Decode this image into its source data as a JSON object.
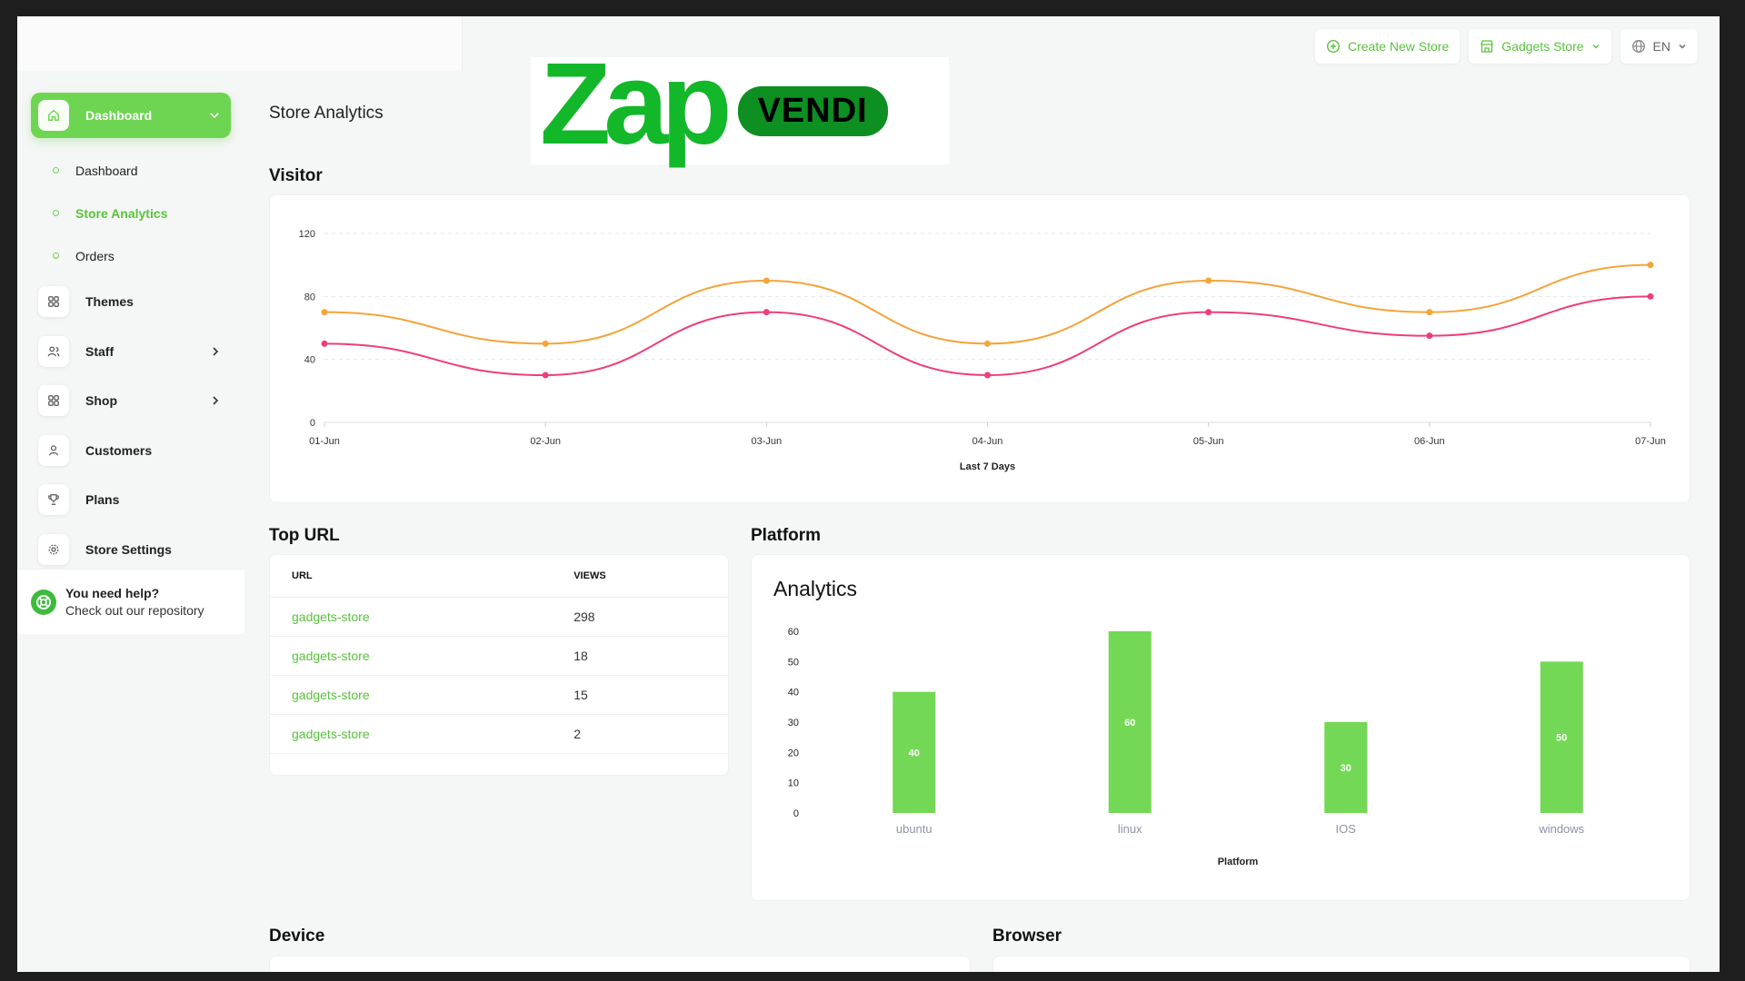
{
  "header": {
    "create_store": "Create New Store",
    "store_select": "Gadgets Store",
    "language": "EN"
  },
  "brand": {
    "name_main": "Zap",
    "name_pill": "VENDI"
  },
  "sidebar": {
    "dashboard_group": "Dashboard",
    "sub_items": [
      "Dashboard",
      "Store Analytics",
      "Orders"
    ],
    "items": [
      "Themes",
      "Staff",
      "Shop",
      "Customers",
      "Plans",
      "Store Settings"
    ],
    "help_title": "You need help?",
    "help_sub": "Check out our repository"
  },
  "page": {
    "title": "Store Analytics"
  },
  "sections": {
    "visitor": "Visitor",
    "top_url": "Top URL",
    "platform": "Platform",
    "device": "Device",
    "browser": "Browser"
  },
  "top_url_table": {
    "headers": [
      "URL",
      "VIEWS"
    ],
    "rows": [
      [
        "gadgets-store",
        "298"
      ],
      [
        "gadgets-store",
        "18"
      ],
      [
        "gadgets-store",
        "15"
      ],
      [
        "gadgets-store",
        "2"
      ]
    ]
  },
  "chart_data": [
    {
      "type": "line",
      "title": "",
      "xlabel": "Last 7 Days",
      "ylabel": "",
      "x": [
        "01-Jun",
        "02-Jun",
        "03-Jun",
        "04-Jun",
        "05-Jun",
        "06-Jun",
        "07-Jun"
      ],
      "yticks": [
        0,
        40,
        80,
        120
      ],
      "ylim": [
        0,
        120
      ],
      "grid": true,
      "series": [
        {
          "values": [
            70,
            50,
            90,
            50,
            90,
            70,
            100
          ],
          "color": "#f4a43a"
        },
        {
          "values": [
            50,
            30,
            70,
            30,
            70,
            55,
            80
          ],
          "color": "#ee3e7a"
        }
      ]
    },
    {
      "type": "bar",
      "title": "Analytics",
      "xlabel": "Platform",
      "ylabel": "",
      "categories": [
        "ubuntu",
        "linux",
        "IOS",
        "windows"
      ],
      "values": [
        40,
        60,
        30,
        50
      ],
      "yticks": [
        0,
        10,
        20,
        30,
        40,
        50,
        60
      ],
      "ylim": [
        0,
        60
      ],
      "color": "#73d855"
    }
  ]
}
